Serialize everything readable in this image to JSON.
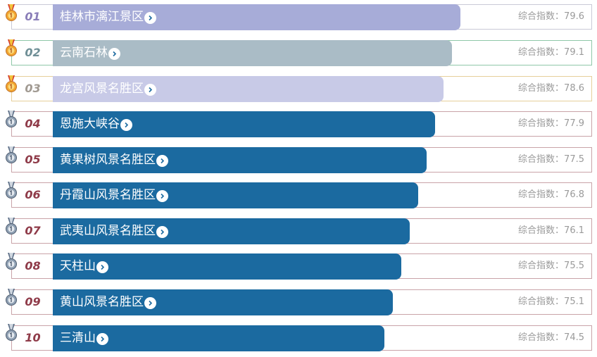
{
  "ranking": {
    "score_prefix": "综合指数：",
    "items": [
      {
        "rank": "01",
        "name": "桂林市漓江景区",
        "score": "79.6",
        "index": 79.6,
        "medal": "gold-medal-icon"
      },
      {
        "rank": "02",
        "name": "云南石林",
        "score": "79.1",
        "index": 79.1,
        "medal": "gold-medal-icon"
      },
      {
        "rank": "03",
        "name": "龙宫风景名胜区",
        "score": "78.6",
        "index": 78.6,
        "medal": "gold-medal-icon"
      },
      {
        "rank": "04",
        "name": "恩施大峡谷",
        "score": "77.9",
        "index": 77.9,
        "medal": "silver-medal-icon"
      },
      {
        "rank": "05",
        "name": "黄果树风景名胜区",
        "score": "77.5",
        "index": 77.5,
        "medal": "silver-medal-icon"
      },
      {
        "rank": "06",
        "name": "丹霞山风景名胜区",
        "score": "76.8",
        "index": 76.8,
        "medal": "silver-medal-icon"
      },
      {
        "rank": "07",
        "name": "武夷山风景名胜区",
        "score": "76.1",
        "index": 76.1,
        "medal": "silver-medal-icon"
      },
      {
        "rank": "08",
        "name": "天柱山",
        "score": "75.5",
        "index": 75.5,
        "medal": "silver-medal-icon"
      },
      {
        "rank": "09",
        "name": "黄山风景名胜区",
        "score": "75.1",
        "index": 75.1,
        "medal": "silver-medal-icon"
      },
      {
        "rank": "10",
        "name": "三清山",
        "score": "74.5",
        "index": 74.5,
        "medal": "silver-medal-icon"
      }
    ]
  },
  "colors": {
    "bar_top1": "#a7acd8",
    "bar_top2": "#aabcc6",
    "bar_top3": "#c8cae7",
    "bar_default": "#1b6aa0",
    "rank_default": "#8f3b49",
    "score_text": "#9a9a9a"
  }
}
